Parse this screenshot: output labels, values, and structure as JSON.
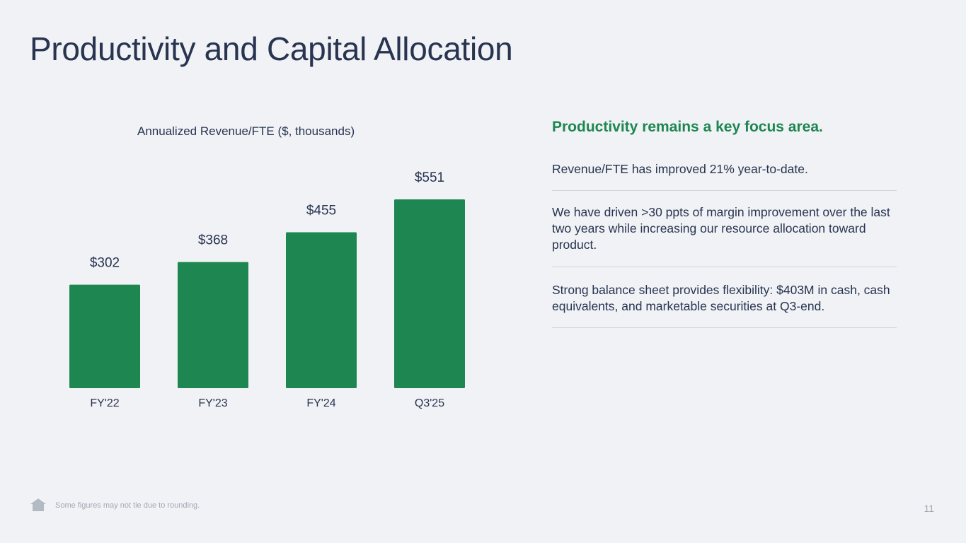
{
  "slide": {
    "title": "Productivity and Capital Allocation",
    "page_number": "11",
    "footnote": "Some figures may not tie due to rounding."
  },
  "chart_data": {
    "type": "bar",
    "title": "Annualized Revenue/FTE ($, thousands)",
    "categories": [
      "FY'22",
      "FY'23",
      "FY'24",
      "Q3'25"
    ],
    "values": [
      302,
      368,
      455,
      551
    ],
    "data_labels": [
      "$302",
      "$368",
      "$455",
      "$551"
    ],
    "xlabel": "",
    "ylabel": "",
    "ylim": [
      0,
      551
    ],
    "grid": false,
    "bar_color": "#1e8650"
  },
  "side_panel": {
    "heading": "Productivity remains a key focus area.",
    "bullets": [
      "Revenue/FTE has improved 21% year-to-date.",
      "We have driven >30 ppts of margin improvement over the last two years while increasing our resource allocation toward product.",
      "Strong balance sheet provides flexibility: $403M in cash, cash equivalents, and marketable securities at Q3-end."
    ]
  },
  "colors": {
    "background": "#f0f2f5",
    "title_text": "#283450",
    "accent_green": "#1e8650",
    "muted_text": "#a3a9b4"
  },
  "icons": {
    "footer": "house-icon"
  }
}
